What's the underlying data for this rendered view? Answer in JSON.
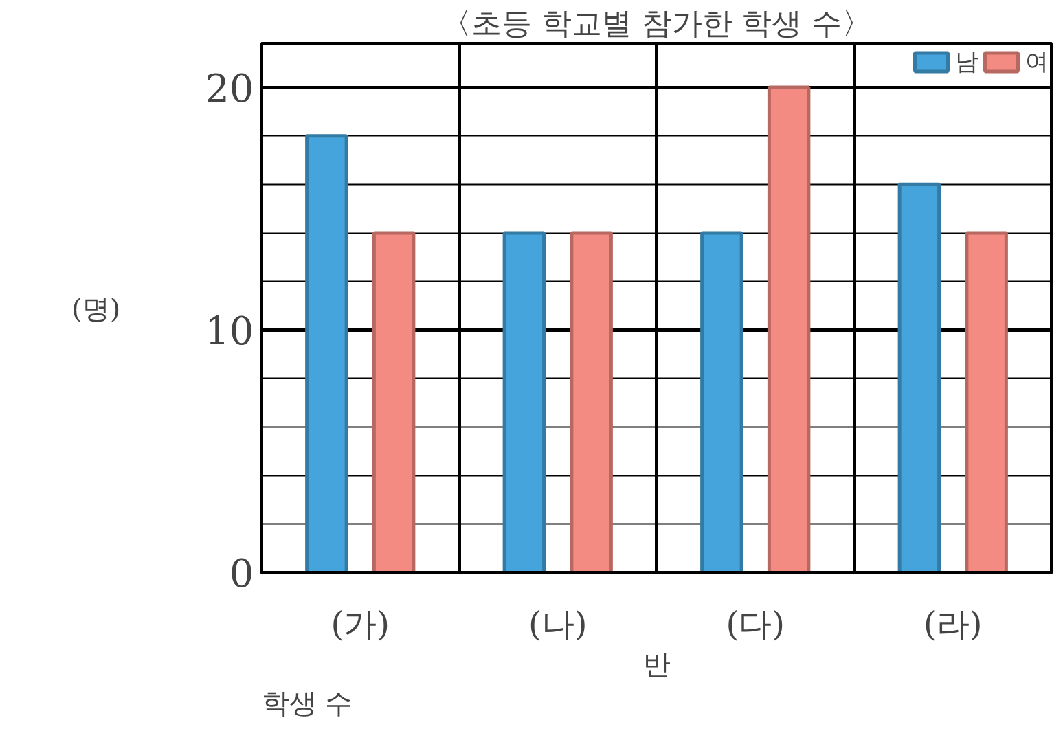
{
  "chart_data": {
    "type": "bar",
    "title": "〈초등 학교별 참가한 학생 수〉",
    "xlabel": "반",
    "ylabel": "(명)",
    "annotations": [
      "학생 수"
    ],
    "categories": [
      "(가)",
      "(나)",
      "(다)",
      "(라)"
    ],
    "series": [
      {
        "name": "남",
        "color": "#45a4dc",
        "values": [
          18,
          14,
          14,
          16
        ]
      },
      {
        "name": "여",
        "color": "#f48b82",
        "values": [
          14,
          14,
          20,
          14
        ]
      }
    ],
    "ylim": [
      0,
      21.8
    ],
    "yticks": [
      0,
      {
        "value": 2,
        "label": null
      },
      {
        "value": 4,
        "label": null
      },
      {
        "value": 6,
        "label": null
      },
      {
        "value": 8,
        "label": null
      },
      10,
      {
        "value": 12,
        "label": null
      },
      {
        "value": 14,
        "label": null
      },
      {
        "value": 16,
        "label": null
      },
      {
        "value": 18,
        "label": null
      },
      20
    ],
    "grid": true,
    "legend": "top right"
  }
}
